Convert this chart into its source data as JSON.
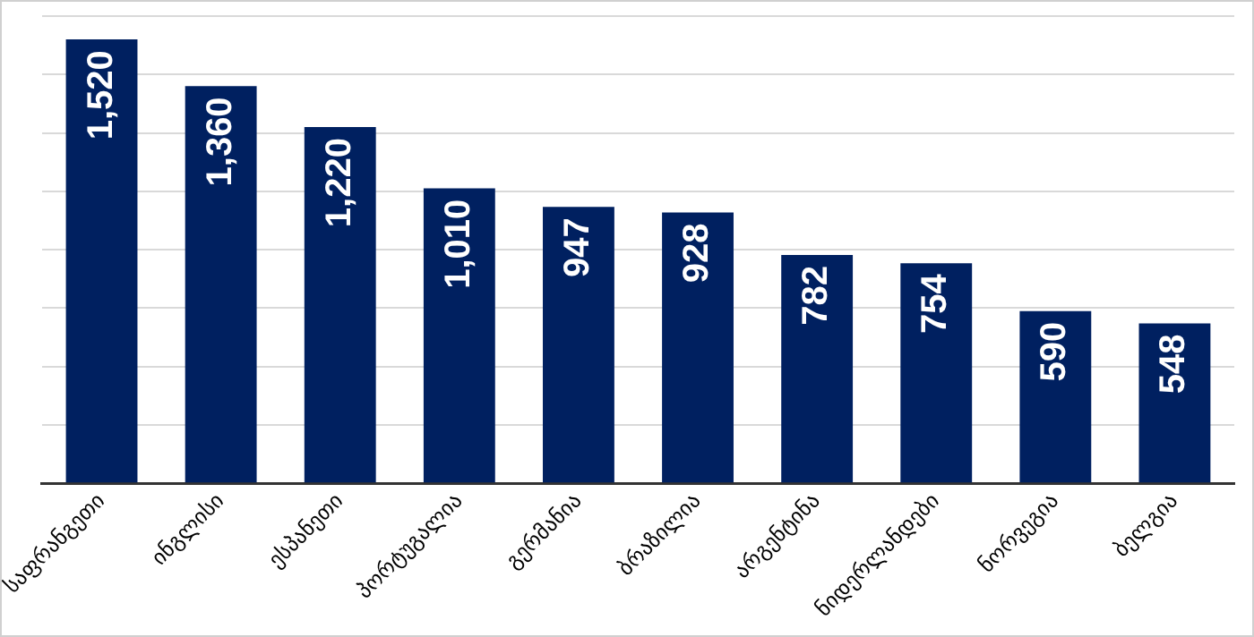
{
  "chart_data": {
    "type": "bar",
    "categories": [
      "საფრანგეთი",
      "ინგლისი",
      "ესპანეთი",
      "პორტუგალია",
      "გერმანია",
      "ბრაზილია",
      "არგენტინა",
      "ნიდერლანდები",
      "ნორვეგია",
      "ბელგია"
    ],
    "values": [
      1520,
      1360,
      1220,
      1010,
      947,
      928,
      782,
      754,
      590,
      548
    ],
    "value_labels": [
      "1,520",
      "1,360",
      "1,220",
      "1,010",
      "947",
      "928",
      "782",
      "754",
      "590",
      "548"
    ],
    "color": "#002060",
    "ylim": [
      0,
      1600
    ],
    "yticks": [
      {
        "value": 0,
        "label": null
      },
      {
        "value": 200,
        "label": null
      },
      {
        "value": 400,
        "label": null
      },
      {
        "value": 600,
        "label": null
      },
      {
        "value": 800,
        "label": null
      },
      {
        "value": 1000,
        "label": null
      },
      {
        "value": 1200,
        "label": null
      },
      {
        "value": 1400,
        "label": null
      },
      {
        "value": 1600,
        "label": null
      }
    ],
    "grid": "y",
    "legend": false,
    "tick_labels": "x"
  }
}
